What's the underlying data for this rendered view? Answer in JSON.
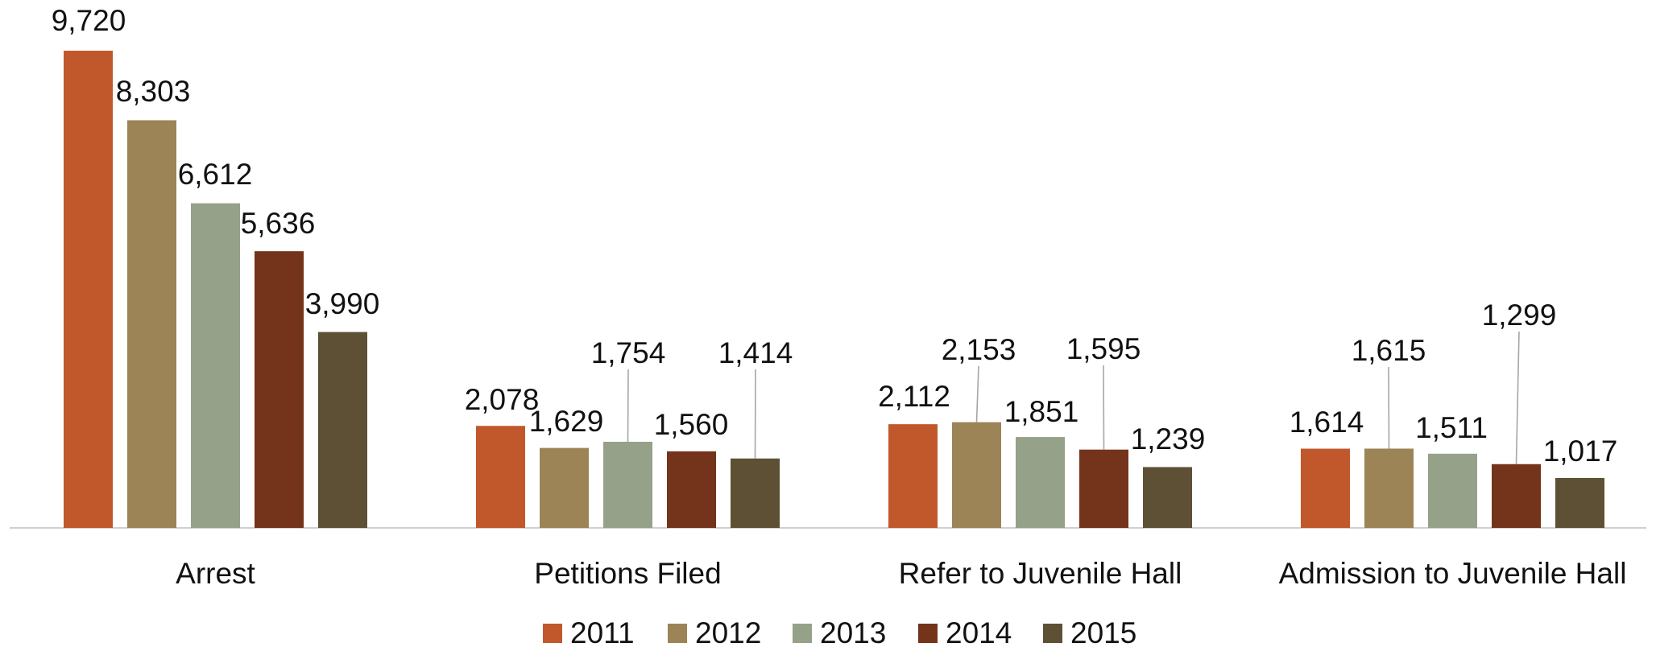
{
  "chart_data": {
    "type": "bar",
    "title": "",
    "xlabel": "",
    "ylabel": "",
    "categories": [
      "Arrest",
      "Petitions Filed",
      "Refer to Juvenile Hall",
      "Admission to Juvenile Hall"
    ],
    "series": [
      {
        "name": "2011",
        "color": "#c0582c",
        "values": [
          9720,
          2078,
          2112,
          1614
        ],
        "labels": [
          "9,720",
          "2,078",
          "2,112",
          "1,614"
        ]
      },
      {
        "name": "2012",
        "color": "#9c8457",
        "values": [
          8303,
          1629,
          2153,
          1615
        ],
        "labels": [
          "8,303",
          "1,629",
          "2,153",
          "1,615"
        ]
      },
      {
        "name": "2013",
        "color": "#95a189",
        "values": [
          6612,
          1754,
          1851,
          1511
        ],
        "labels": [
          "6,612",
          "1,754",
          "1,851",
          "1,511"
        ]
      },
      {
        "name": "2014",
        "color": "#74341b",
        "values": [
          5636,
          1560,
          1595,
          1299
        ],
        "labels": [
          "5,636",
          "1,560",
          "1,595",
          "1,299"
        ]
      },
      {
        "name": "2015",
        "color": "#5e5035",
        "values": [
          3990,
          1414,
          1239,
          1017
        ],
        "labels": [
          "3,990",
          "1,414",
          "1,239",
          "1,017"
        ]
      }
    ],
    "ylim": [
      0,
      9720
    ],
    "grid": false,
    "legend": "bottom"
  }
}
